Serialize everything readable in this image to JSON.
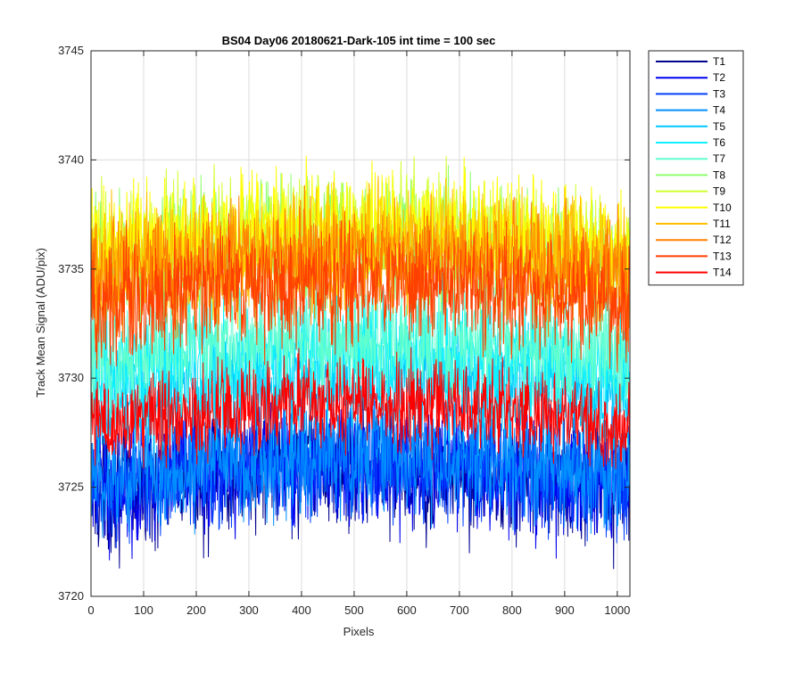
{
  "chart_data": {
    "type": "line",
    "title": "BS04 Day06 20180621-Dark-105 int time = 100 sec",
    "xlabel": "Pixels",
    "ylabel": "Track Mean Signal (ADU/pix)",
    "xlim": [
      0,
      1024
    ],
    "ylim": [
      3720,
      3745
    ],
    "xticks": [
      0,
      100,
      200,
      300,
      400,
      500,
      600,
      700,
      800,
      900,
      1000
    ],
    "yticks": [
      3720,
      3725,
      3730,
      3735,
      3740,
      3745
    ],
    "grid": true,
    "legend_position": "outside-top-right",
    "x_range_points": [
      0,
      1023
    ],
    "series": [
      {
        "name": "T1",
        "color": "#00008f",
        "baseline": 3725.6,
        "noise": 1.4
      },
      {
        "name": "T2",
        "color": "#0000ef",
        "baseline": 3725.7,
        "noise": 1.3
      },
      {
        "name": "T3",
        "color": "#0040ff",
        "baseline": 3725.9,
        "noise": 1.3
      },
      {
        "name": "T4",
        "color": "#0090ff",
        "baseline": 3726.1,
        "noise": 1.3
      },
      {
        "name": "T5",
        "color": "#00c8ff",
        "baseline": 3729.6,
        "noise": 1.3
      },
      {
        "name": "T6",
        "color": "#10f0ff",
        "baseline": 3730.9,
        "noise": 1.3
      },
      {
        "name": "T7",
        "color": "#60ffd0",
        "baseline": 3731.6,
        "noise": 1.3
      },
      {
        "name": "T8",
        "color": "#90ff70",
        "baseline": 3736.0,
        "noise": 1.3
      },
      {
        "name": "T9",
        "color": "#d0ff30",
        "baseline": 3736.4,
        "noise": 1.3
      },
      {
        "name": "T10",
        "color": "#ffff00",
        "baseline": 3736.6,
        "noise": 1.3
      },
      {
        "name": "T11",
        "color": "#ffbf00",
        "baseline": 3735.8,
        "noise": 1.3
      },
      {
        "name": "T12",
        "color": "#ff8000",
        "baseline": 3735.2,
        "noise": 1.3
      },
      {
        "name": "T13",
        "color": "#ff4000",
        "baseline": 3734.0,
        "noise": 1.3
      },
      {
        "name": "T14",
        "color": "#ff0000",
        "baseline": 3728.6,
        "noise": 1.0
      }
    ]
  }
}
